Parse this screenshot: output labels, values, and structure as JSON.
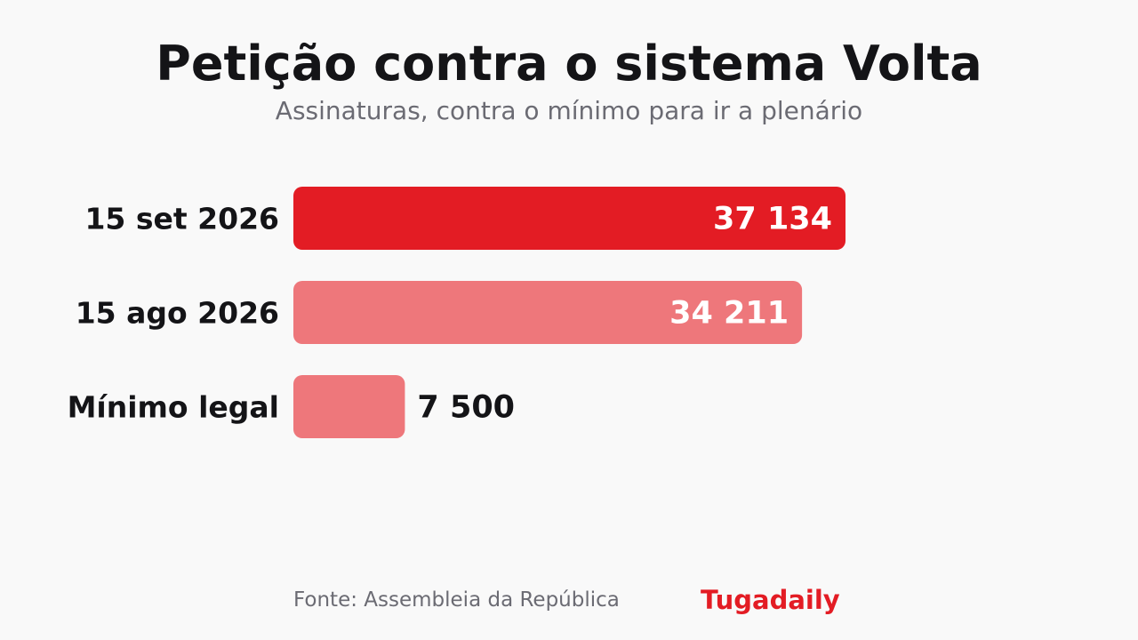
{
  "chart_data": {
    "type": "bar",
    "orientation": "horizontal",
    "title": "Petição contra o sistema Volta",
    "subtitle": "Assinaturas, contra o mínimo para ir a plenário",
    "categories": [
      "15 set 2026",
      "15 ago 2026",
      "Mínimo legal"
    ],
    "values": [
      37134,
      34211,
      7500
    ],
    "value_labels": [
      "37 134",
      "34 211",
      "7 500"
    ],
    "bar_colors": [
      "#e31c24",
      "#ee777b",
      "#ee777b"
    ],
    "xlim": [
      0,
      37134
    ],
    "grid": false,
    "legend": "none"
  },
  "footer": {
    "source": "Fonte: Assembleia da República",
    "brand": "Tugadaily"
  },
  "colors": {
    "background": "#f9f9f9",
    "text": "#141417",
    "muted": "#6b6b73",
    "accent": "#e31c24",
    "accent_light": "#ee777b"
  }
}
